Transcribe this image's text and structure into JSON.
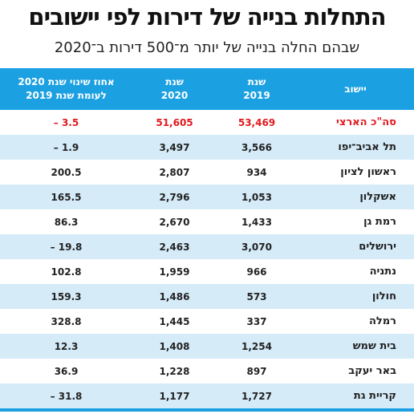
{
  "header": {
    "title": "התחלות בנייה של דירות לפי יישובים",
    "subtitle": "שבהם החלה בנייה של יותר מ־500 דירות ב־2020"
  },
  "table": {
    "columns": [
      "יישוב",
      "שנת\n2019",
      "שנת\n2020",
      "אחוז שינוי שנת 2020\nלעומת שנת 2019"
    ],
    "rows": [
      [
        "סה\"כ הארצי",
        "53,469",
        "51,605",
        "– 3.5"
      ],
      [
        "תל אביב־יפו",
        "3,566",
        "3,497",
        "– 1.9"
      ],
      [
        "ראשון לציון",
        "934",
        "2,807",
        "200.5"
      ],
      [
        "אשקלון",
        "1,053",
        "2,796",
        "165.5"
      ],
      [
        "רמת גן",
        "1,433",
        "2,670",
        "86.3"
      ],
      [
        "ירושלים",
        "3,070",
        "2,463",
        "– 19.8"
      ],
      [
        "נתניה",
        "966",
        "1,959",
        "102.8"
      ],
      [
        "חולון",
        "573",
        "1,486",
        "159.3"
      ],
      [
        "רמלה",
        "337",
        "1,445",
        "328.8"
      ],
      [
        "בית שמש",
        "1,254",
        "1,408",
        "12.3"
      ],
      [
        "באר יעקב",
        "897",
        "1,228",
        "36.9"
      ],
      [
        "קריית גת",
        "1,727",
        "1,177",
        "– 31.8"
      ]
    ]
  }
}
